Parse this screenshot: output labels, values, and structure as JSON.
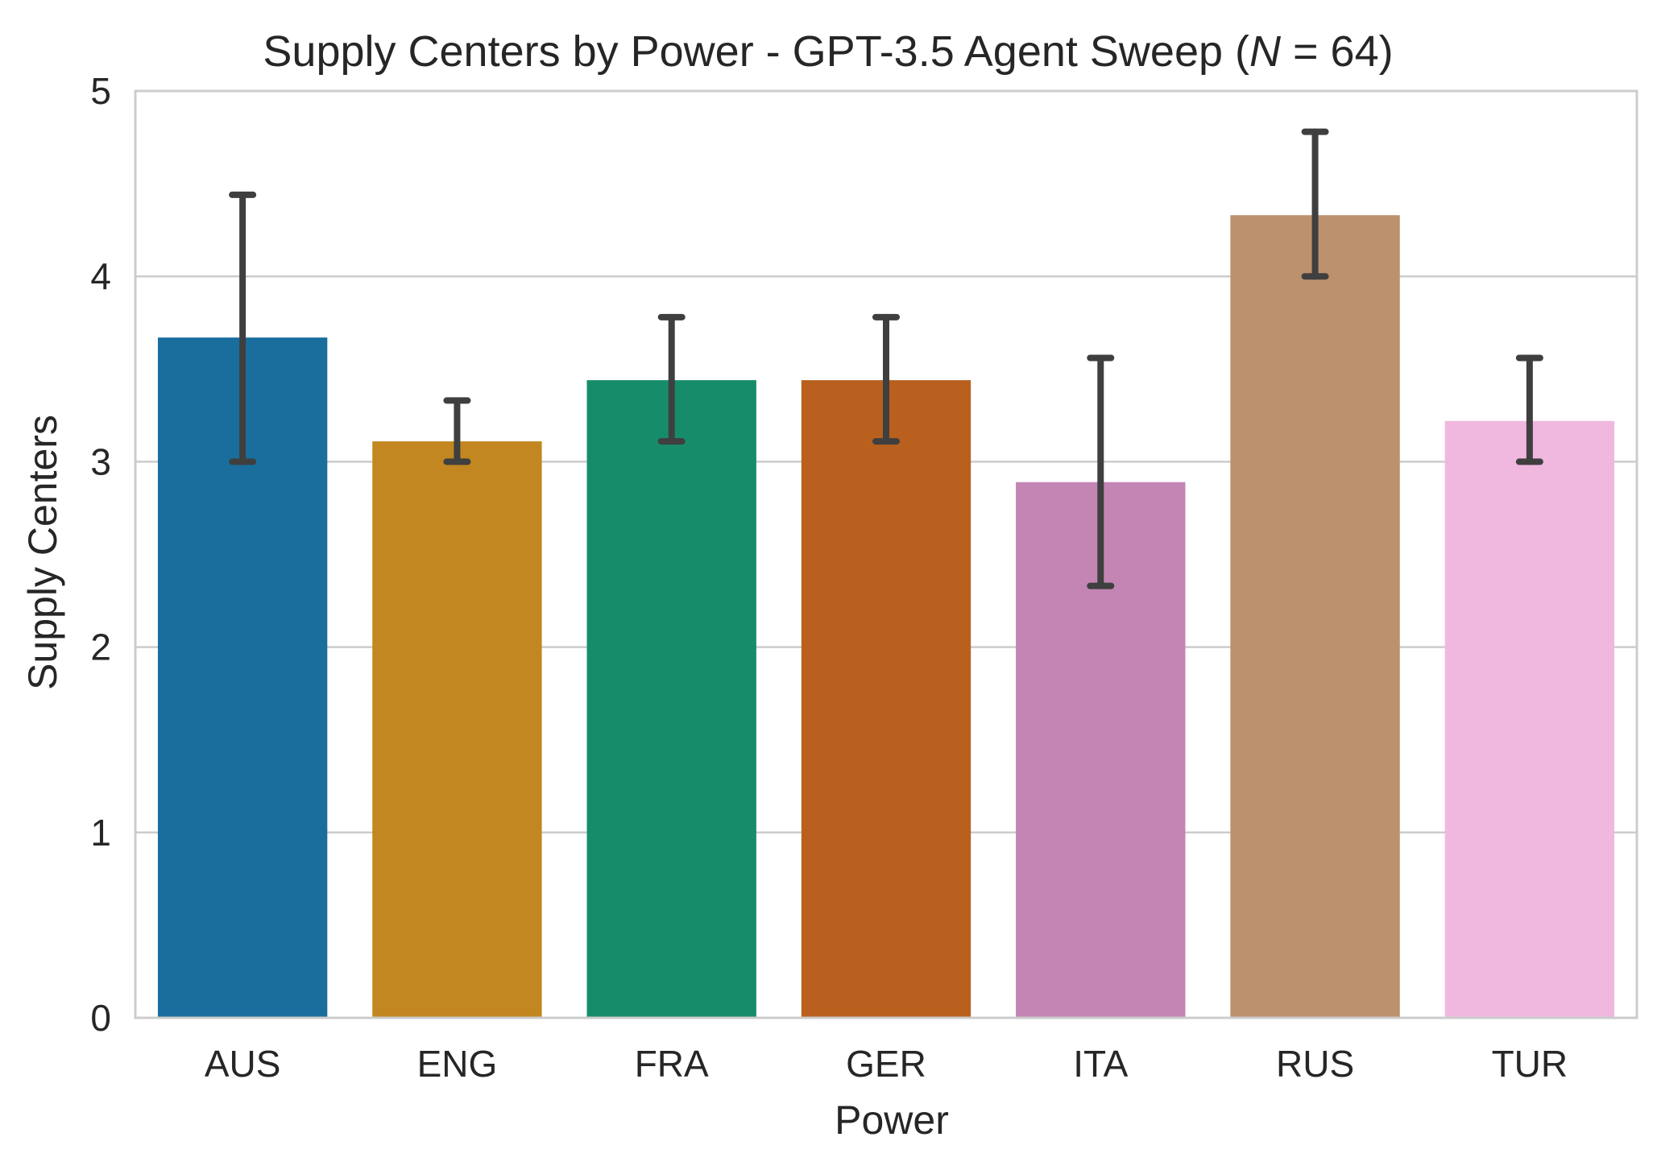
{
  "chart_data": {
    "type": "bar",
    "title": "Supply Centers by Power - GPT-3.5 Agent Sweep (",
    "title_math_var": "N",
    "title_math_rest": " = 64)",
    "xlabel": "Power",
    "ylabel": "Supply Centers",
    "categories": [
      "AUS",
      "ENG",
      "FRA",
      "GER",
      "ITA",
      "RUS",
      "TUR"
    ],
    "values": [
      3.67,
      3.11,
      3.44,
      3.44,
      2.89,
      4.33,
      3.22
    ],
    "error_low": [
      3.0,
      3.0,
      3.11,
      3.11,
      2.33,
      4.0,
      3.0
    ],
    "error_high": [
      4.44,
      3.33,
      3.78,
      3.78,
      3.56,
      4.78,
      3.56
    ],
    "colors": [
      "#1a6e9e",
      "#c28720",
      "#178c6b",
      "#b9601f",
      "#c385b4",
      "#bc916e",
      "#f0b8df"
    ],
    "ylim": [
      0,
      5
    ],
    "yticks": [
      "0",
      "1",
      "2",
      "3",
      "4",
      "5"
    ],
    "grid": true,
    "grid_axis": "y",
    "legend": "none"
  }
}
